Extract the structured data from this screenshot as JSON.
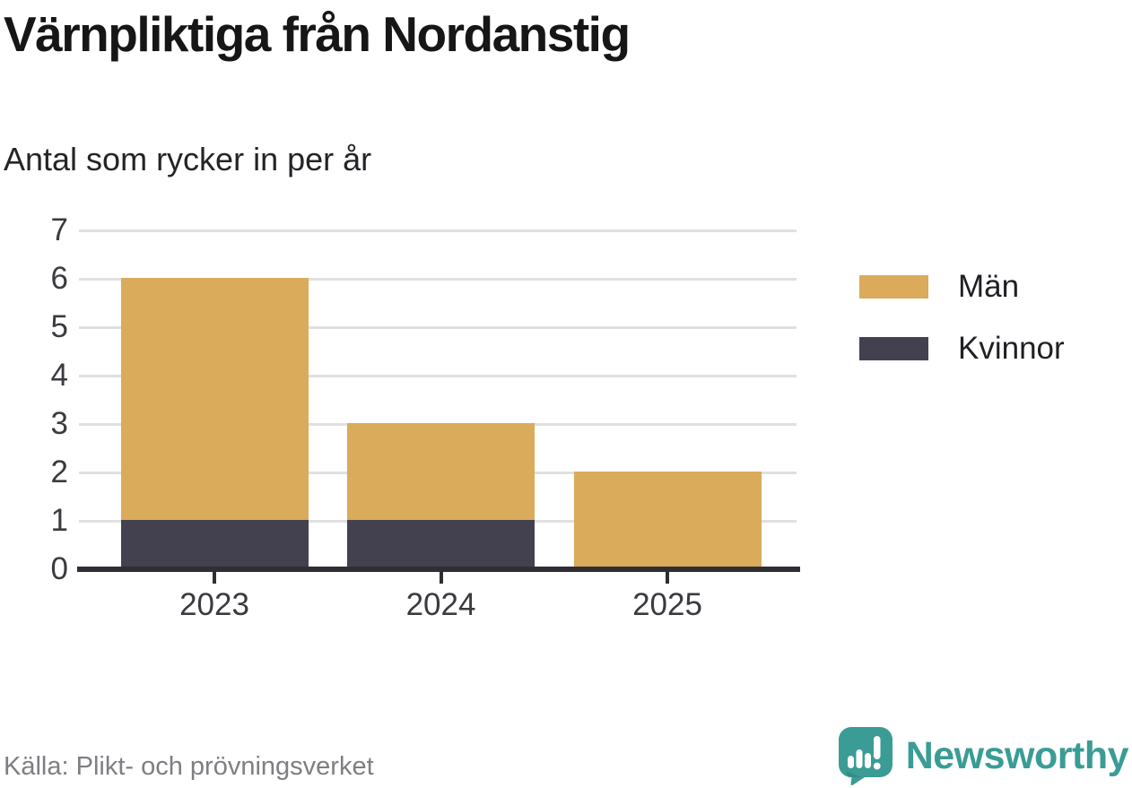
{
  "header": {
    "title": "Värnpliktiga från Nordanstig",
    "subtitle": "Antal som rycker in per år"
  },
  "chart_data": {
    "type": "bar",
    "stacked": true,
    "categories": [
      "2023",
      "2024",
      "2025"
    ],
    "series": [
      {
        "name": "Män",
        "color": "#D9AB5B",
        "values": [
          5,
          2,
          2
        ]
      },
      {
        "name": "Kvinnor",
        "color": "#43414F",
        "values": [
          1,
          1,
          0
        ]
      }
    ],
    "stack_bottom_to_top": [
      "Kvinnor",
      "Män"
    ],
    "totals": [
      6,
      3,
      2
    ],
    "title": "Värnpliktiga från Nordanstig",
    "subtitle": "Antal som rycker in per år",
    "xlabel": "",
    "ylabel": "",
    "ylim": [
      0,
      7
    ],
    "yticks": [
      0,
      1,
      2,
      3,
      4,
      5,
      6,
      7
    ],
    "grid": true,
    "legend_position": "right"
  },
  "legend": {
    "items": [
      {
        "label": "Män",
        "color": "#D9AB5B"
      },
      {
        "label": "Kvinnor",
        "color": "#43414F"
      }
    ]
  },
  "footer": {
    "source": "Källa: Plikt- och prövningsverket",
    "brand": "Newsworthy"
  },
  "colors": {
    "male_gold": "#D9AB5B",
    "female_dark": "#43414F",
    "grid": "#E0E0E0",
    "axis": "#2E2E34",
    "brand_teal": "#3A9C95"
  }
}
